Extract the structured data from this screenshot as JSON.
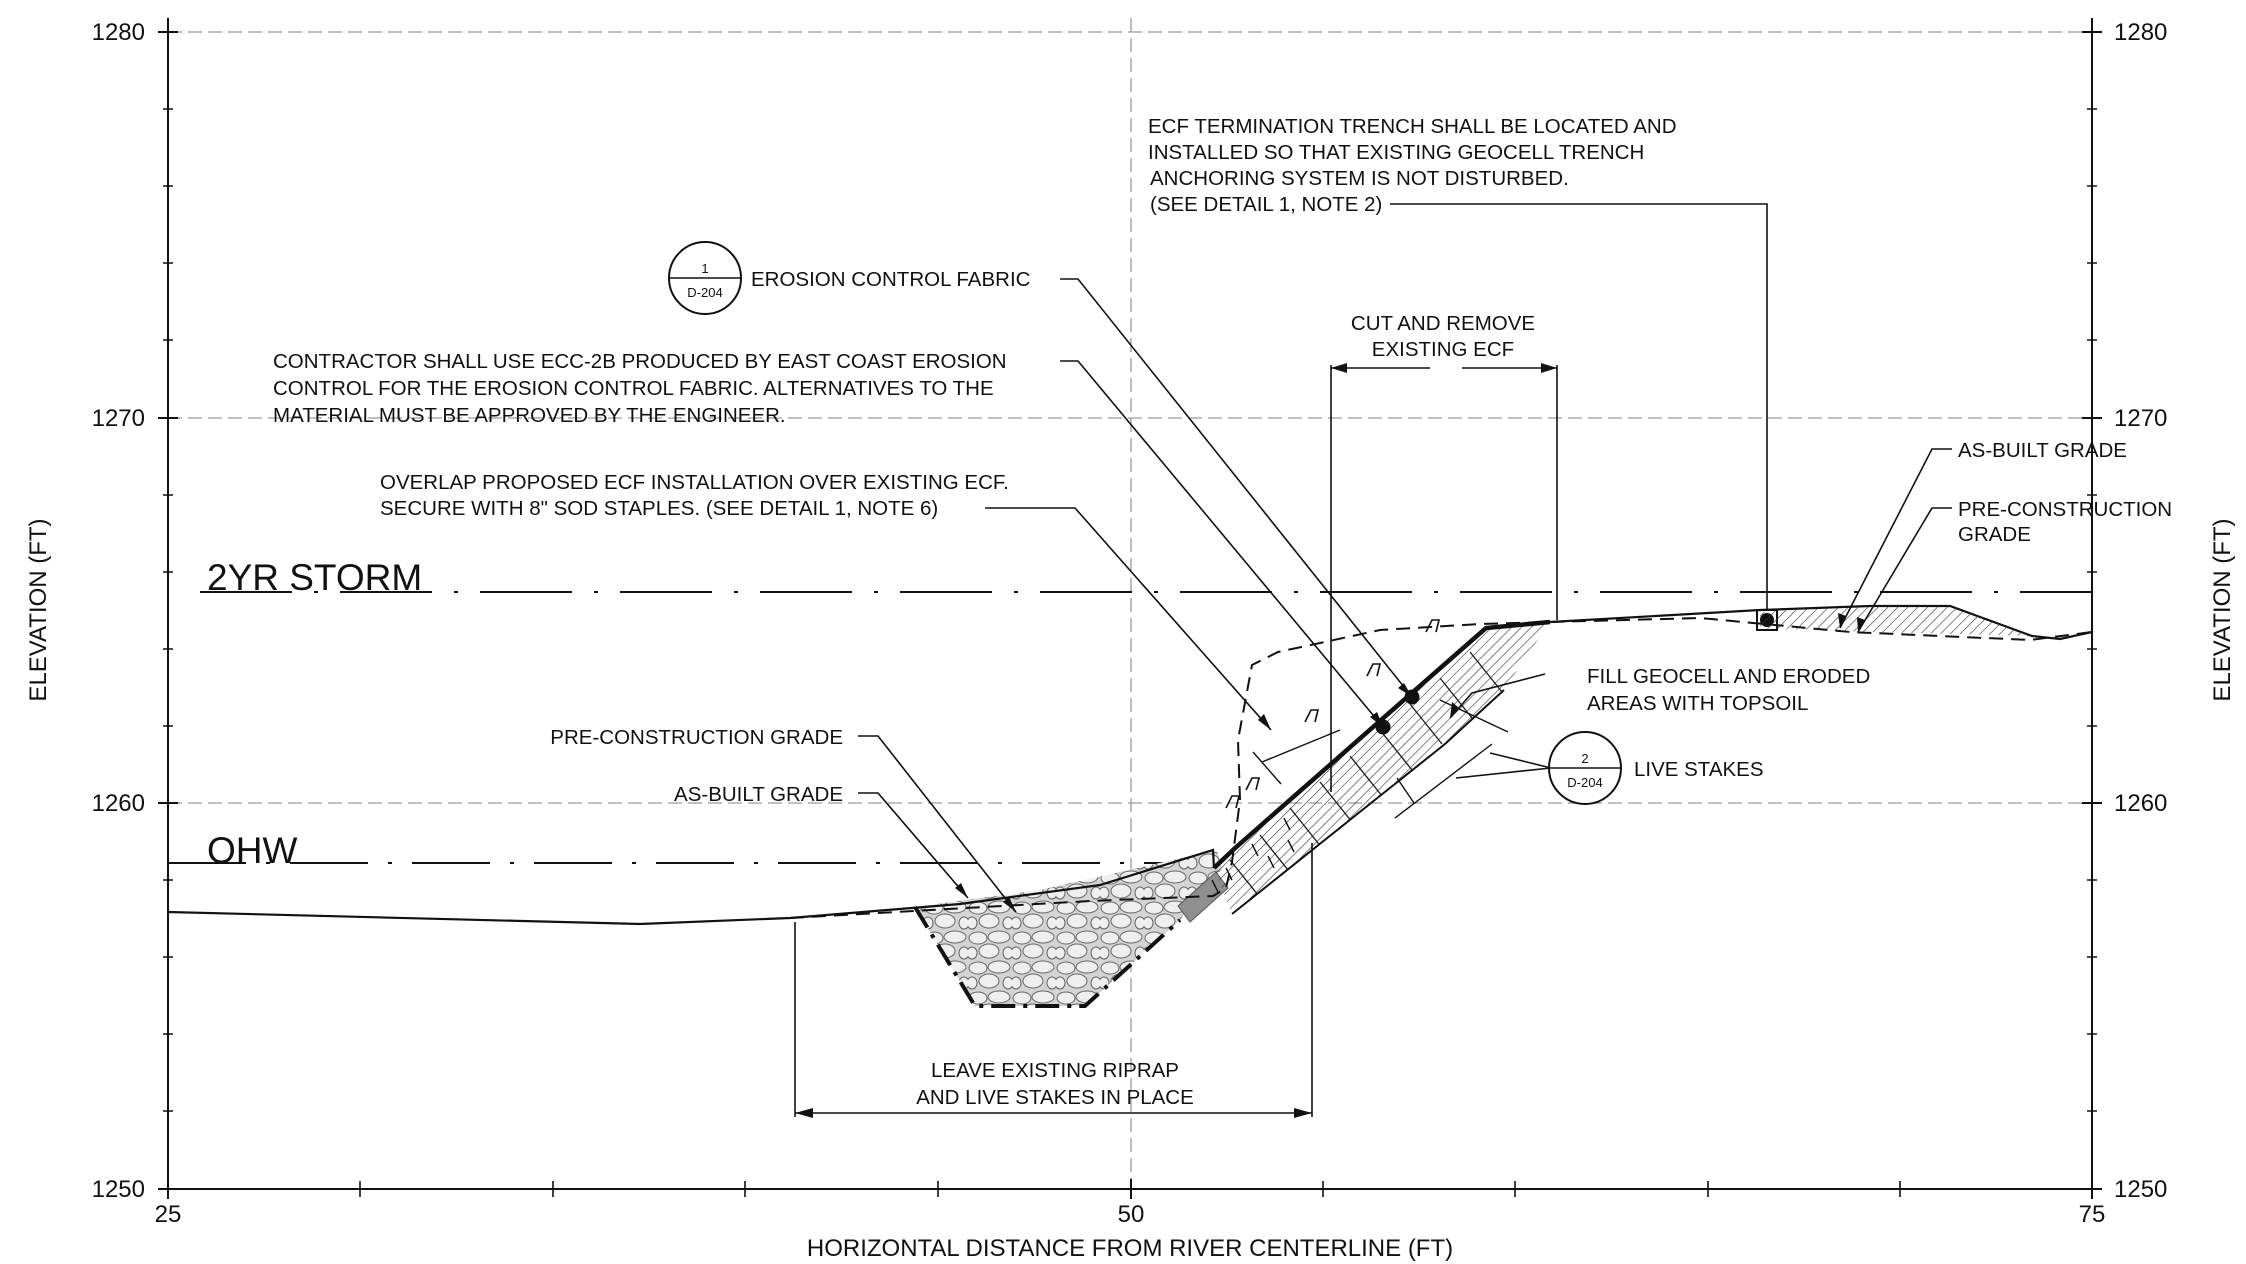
{
  "axes": {
    "x_title": "HORIZONTAL DISTANCE FROM RIVER CENTERLINE (FT)",
    "y_title_left": "ELEVATION (FT)",
    "y_title_right": "ELEVATION (FT)",
    "x_ticks": [
      "25",
      "50",
      "75"
    ],
    "y_ticks": [
      "1280",
      "1270",
      "1260",
      "1250"
    ],
    "xlim": [
      25,
      75
    ],
    "ylim": [
      1250,
      1280
    ]
  },
  "water_levels": {
    "storm_label": "2YR STORM",
    "ohw_label": "OHW"
  },
  "notes": {
    "termination": [
      "ECF TERMINATION TRENCH SHALL BE LOCATED AND",
      "INSTALLED SO THAT EXISTING GEOCELL TRENCH",
      "ANCHORING SYSTEM IS NOT DISTURBED.",
      "(SEE DETAIL 1, NOTE 2)"
    ],
    "erosion_fabric": "EROSION CONTROL FABRIC",
    "contractor": [
      "CONTRACTOR SHALL USE ECC-2B PRODUCED BY EAST COAST EROSION",
      "CONTROL FOR THE EROSION CONTROL FABRIC. ALTERNATIVES TO THE",
      "MATERIAL MUST BE APPROVED BY THE ENGINEER."
    ],
    "overlap": [
      "OVERLAP PROPOSED ECF INSTALLATION OVER EXISTING ECF.",
      "SECURE WITH 8\" SOD STAPLES. (SEE DETAIL 1, NOTE 6)"
    ],
    "cut_remove": [
      "CUT AND REMOVE",
      "EXISTING ECF"
    ],
    "as_built_right": "AS-BUILT GRADE",
    "pre_construction_right": [
      "PRE-CONSTRUCTION",
      "GRADE"
    ],
    "fill_geocell": [
      "FILL GEOCELL AND ERODED",
      "AREAS WITH TOPSOIL"
    ],
    "live_stakes": "LIVE STAKES",
    "pre_construction_left": "PRE-CONSTRUCTION GRADE",
    "as_built_left": "AS-BUILT GRADE",
    "leave_riprap": [
      "LEAVE EXISTING RIPRAP",
      "AND LIVE STAKES IN PLACE"
    ]
  },
  "detail_callouts": [
    {
      "number": "1",
      "sheet": "D-204"
    },
    {
      "number": "2",
      "sheet": "D-204"
    }
  ],
  "colors": {
    "linework": "#111111",
    "grid": "#9a9a9a",
    "riprap": "#c8c8c8",
    "existing_fabric": "#8f8f8f"
  }
}
